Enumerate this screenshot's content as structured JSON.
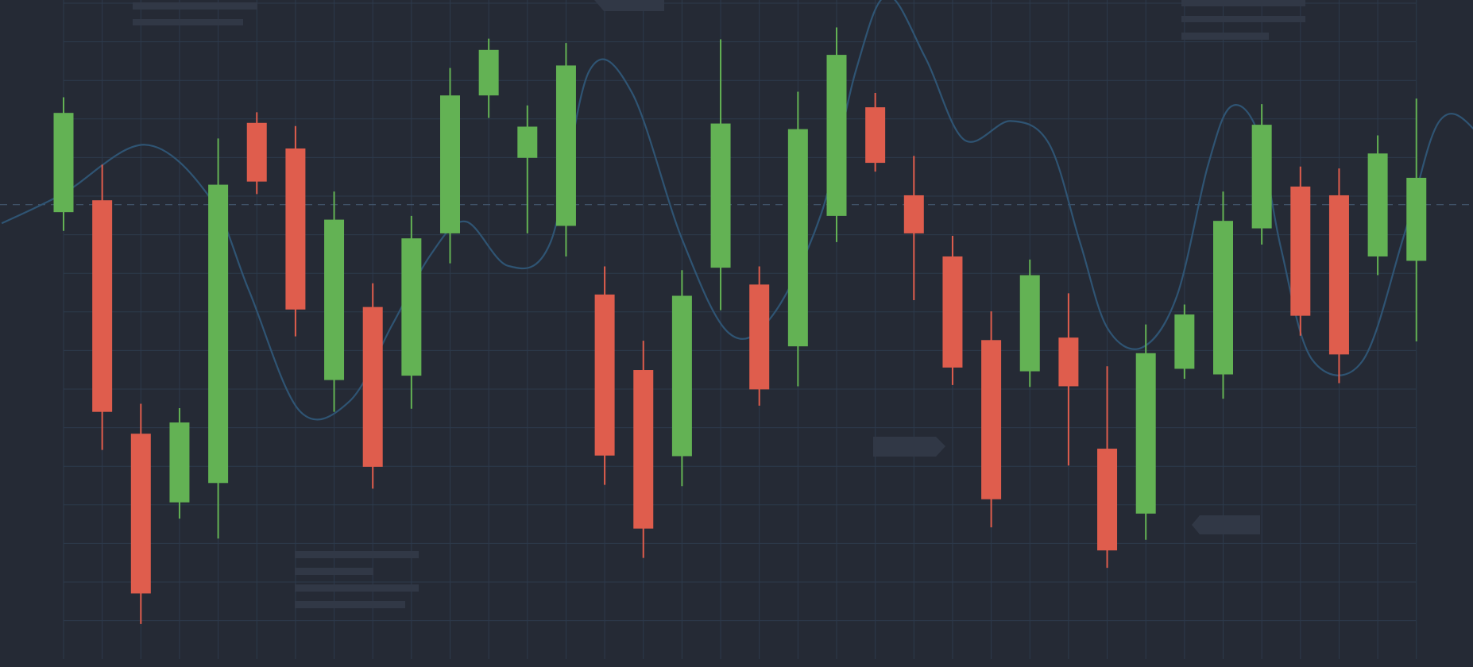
{
  "chart_data": {
    "type": "candlestick",
    "title": "",
    "xlabel": "",
    "ylabel": "",
    "x_range": [
      0,
      37
    ],
    "ylim": [
      0,
      100
    ],
    "grid": true,
    "legend": "none",
    "reference_line": {
      "value": 69.5,
      "style": "dashed"
    },
    "colors": {
      "background": "#252a35",
      "grid": "#2d3a4c",
      "bullish": "#63b254",
      "bearish": "#df5d4d",
      "trend_line": "#2f5473",
      "reference_line": "#4a5f78",
      "placeholder": "#313846"
    },
    "candles": [
      {
        "open": 68.3,
        "high": 86.7,
        "low": 65.3,
        "close": 84.2
      },
      {
        "open": 70.2,
        "high": 75.9,
        "low": 30.2,
        "close": 36.3
      },
      {
        "open": 32.8,
        "high": 37.6,
        "low": 2.3,
        "close": 7.2
      },
      {
        "open": 21.8,
        "high": 36.9,
        "low": 19.2,
        "close": 34.6
      },
      {
        "open": 24.9,
        "high": 80.1,
        "low": 16.0,
        "close": 72.7
      },
      {
        "open": 82.6,
        "high": 84.3,
        "low": 71.2,
        "close": 73.2
      },
      {
        "open": 78.5,
        "high": 82.1,
        "low": 48.4,
        "close": 52.7
      },
      {
        "open": 41.4,
        "high": 71.6,
        "low": 36.3,
        "close": 67.1
      },
      {
        "open": 53.1,
        "high": 56.9,
        "low": 24.0,
        "close": 27.5
      },
      {
        "open": 42.1,
        "high": 67.7,
        "low": 36.8,
        "close": 64.1
      },
      {
        "open": 64.9,
        "high": 91.4,
        "low": 60.1,
        "close": 87.0
      },
      {
        "open": 87.0,
        "high": 96.1,
        "low": 83.4,
        "close": 94.3
      },
      {
        "open": 77.0,
        "high": 85.4,
        "low": 64.9,
        "close": 82.0
      },
      {
        "open": 66.1,
        "high": 95.4,
        "low": 61.2,
        "close": 91.8
      },
      {
        "open": 55.1,
        "high": 59.6,
        "low": 24.6,
        "close": 29.3
      },
      {
        "open": 43.0,
        "high": 47.7,
        "low": 12.9,
        "close": 17.6
      },
      {
        "open": 29.2,
        "high": 59.0,
        "low": 24.4,
        "close": 54.9
      },
      {
        "open": 59.4,
        "high": 96.0,
        "low": 52.6,
        "close": 82.5
      },
      {
        "open": 56.7,
        "high": 59.6,
        "low": 37.3,
        "close": 39.9
      },
      {
        "open": 46.8,
        "high": 87.6,
        "low": 40.4,
        "close": 81.6
      },
      {
        "open": 67.7,
        "high": 97.9,
        "low": 63.5,
        "close": 93.5
      },
      {
        "open": 85.1,
        "high": 87.4,
        "low": 74.8,
        "close": 76.2
      },
      {
        "open": 71.0,
        "high": 77.3,
        "low": 54.2,
        "close": 64.9
      },
      {
        "open": 61.2,
        "high": 64.5,
        "low": 40.6,
        "close": 43.4
      },
      {
        "open": 47.8,
        "high": 52.4,
        "low": 17.8,
        "close": 22.3
      },
      {
        "open": 42.8,
        "high": 60.7,
        "low": 40.3,
        "close": 58.2
      },
      {
        "open": 48.2,
        "high": 55.3,
        "low": 27.7,
        "close": 40.4
      },
      {
        "open": 30.4,
        "high": 43.6,
        "low": 11.3,
        "close": 14.1
      },
      {
        "open": 20.0,
        "high": 50.3,
        "low": 15.8,
        "close": 45.7
      },
      {
        "open": 43.2,
        "high": 53.5,
        "low": 41.6,
        "close": 51.9
      },
      {
        "open": 42.3,
        "high": 71.6,
        "low": 38.4,
        "close": 66.9
      },
      {
        "open": 65.7,
        "high": 85.6,
        "low": 63.1,
        "close": 82.3
      },
      {
        "open": 72.4,
        "high": 75.6,
        "low": 48.5,
        "close": 51.7
      },
      {
        "open": 71.0,
        "high": 75.3,
        "low": 40.9,
        "close": 45.5
      },
      {
        "open": 61.2,
        "high": 80.6,
        "low": 58.2,
        "close": 77.7
      },
      {
        "open": 60.5,
        "high": 86.5,
        "low": 47.6,
        "close": 73.8
      }
    ],
    "trend_line": {
      "points": [
        [
          -1.6,
          66.5
        ],
        [
          0.0,
          71.3
        ],
        [
          2.1,
          79.1
        ],
        [
          3.8,
          70.5
        ],
        [
          4.8,
          55.7
        ],
        [
          6.1,
          36.5
        ],
        [
          7.4,
          38.0
        ],
        [
          8.5,
          50.2
        ],
        [
          9.5,
          61.5
        ],
        [
          10.4,
          66.8
        ],
        [
          11.5,
          59.7
        ],
        [
          12.6,
          63.5
        ],
        [
          13.6,
          90.9
        ],
        [
          14.7,
          87.5
        ],
        [
          16.0,
          64.0
        ],
        [
          17.2,
          49.0
        ],
        [
          18.3,
          51.4
        ],
        [
          19.6,
          68.0
        ],
        [
          20.5,
          91.0
        ],
        [
          21.3,
          103.0
        ],
        [
          22.3,
          93.0
        ],
        [
          23.3,
          79.9
        ],
        [
          24.5,
          82.9
        ],
        [
          25.5,
          79.2
        ],
        [
          26.3,
          63.4
        ],
        [
          27.0,
          49.8
        ],
        [
          27.9,
          46.6
        ],
        [
          28.8,
          54.8
        ],
        [
          29.6,
          75.6
        ],
        [
          30.2,
          85.2
        ],
        [
          30.9,
          81.0
        ],
        [
          31.5,
          62.4
        ],
        [
          32.3,
          44.7
        ],
        [
          33.6,
          44.4
        ],
        [
          34.7,
          65.0
        ],
        [
          35.6,
          82.9
        ],
        [
          36.6,
          80.8
        ],
        [
          37.8,
          68.0
        ],
        [
          39.0,
          61.3
        ]
      ]
    }
  }
}
